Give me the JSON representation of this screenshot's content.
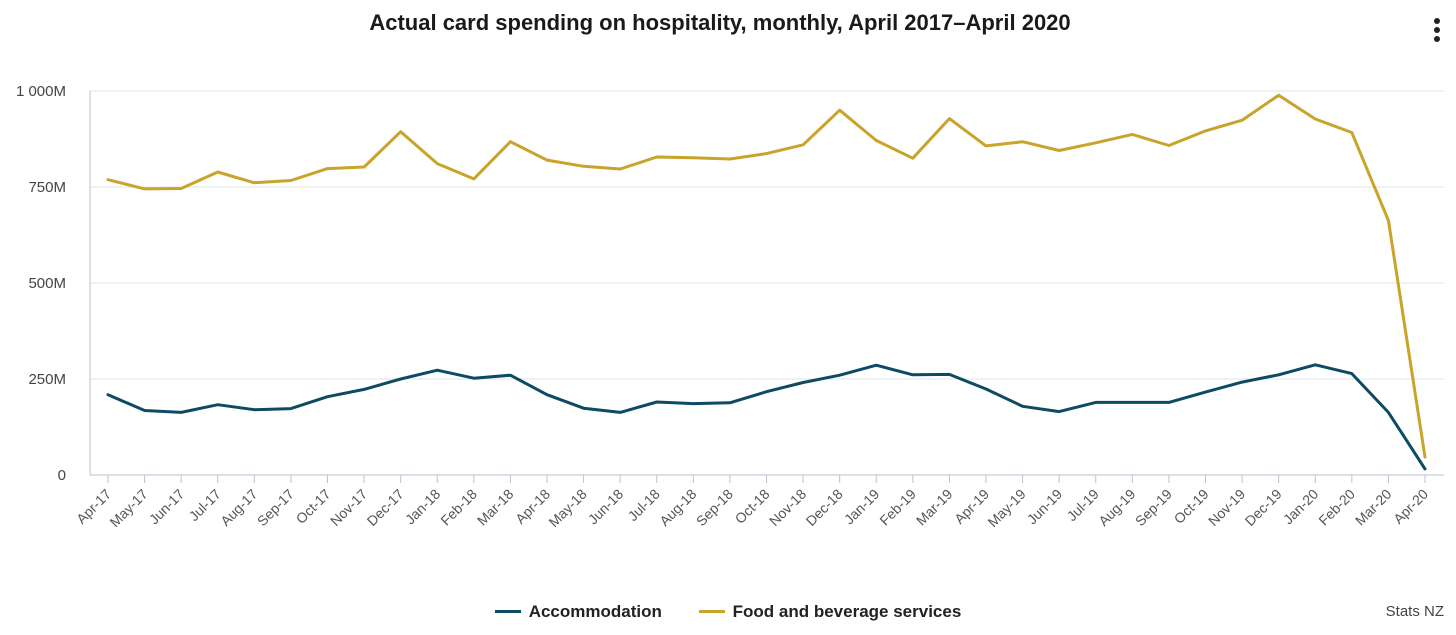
{
  "chart_data": {
    "type": "line",
    "title": "Actual card spending on hospitality, monthly, April 2017–April 2020",
    "xlabel": "",
    "ylabel": "",
    "ylim": [
      0,
      1000
    ],
    "yticks": [
      {
        "value": 0,
        "label": "0"
      },
      {
        "value": 250,
        "label": "250M"
      },
      {
        "value": 500,
        "label": "500M"
      },
      {
        "value": 750,
        "label": "750M"
      },
      {
        "value": 1000,
        "label": "1 000M"
      }
    ],
    "categories": [
      "Apr-17",
      "May-17",
      "Jun-17",
      "Jul-17",
      "Aug-17",
      "Sep-17",
      "Oct-17",
      "Nov-17",
      "Dec-17",
      "Jan-18",
      "Feb-18",
      "Mar-18",
      "Apr-18",
      "May-18",
      "Jun-18",
      "Jul-18",
      "Aug-18",
      "Sep-18",
      "Oct-18",
      "Nov-18",
      "Dec-18",
      "Jan-19",
      "Feb-19",
      "Mar-19",
      "Apr-19",
      "May-19",
      "Jun-19",
      "Jul-19",
      "Aug-19",
      "Sep-19",
      "Oct-19",
      "Nov-19",
      "Dec-19",
      "Jan-20",
      "Feb-20",
      "Mar-20",
      "Apr-20"
    ],
    "grid": true,
    "legend_position": "bottom-center",
    "series": [
      {
        "name": "Accommodation",
        "color": "#0d4a63",
        "values": [
          209,
          168,
          163,
          183,
          170,
          173,
          204,
          223,
          250,
          273,
          252,
          260,
          209,
          174,
          163,
          190,
          186,
          188,
          217,
          241,
          260,
          286,
          261,
          262,
          224,
          179,
          165,
          189,
          189,
          189,
          216,
          242,
          261,
          287,
          264,
          163,
          16
        ]
      },
      {
        "name": "Food and beverage services",
        "color": "#c9a32a",
        "values": [
          769,
          745,
          746,
          789,
          761,
          767,
          798,
          802,
          894,
          811,
          771,
          868,
          820,
          804,
          797,
          828,
          826,
          823,
          837,
          860,
          950,
          871,
          825,
          928,
          857,
          868,
          845,
          865,
          887,
          858,
          896,
          924,
          989,
          927,
          892,
          663,
          47
        ]
      }
    ]
  },
  "credit": "Stats NZ",
  "menu": {
    "icon": "vertical-ellipsis-icon"
  }
}
